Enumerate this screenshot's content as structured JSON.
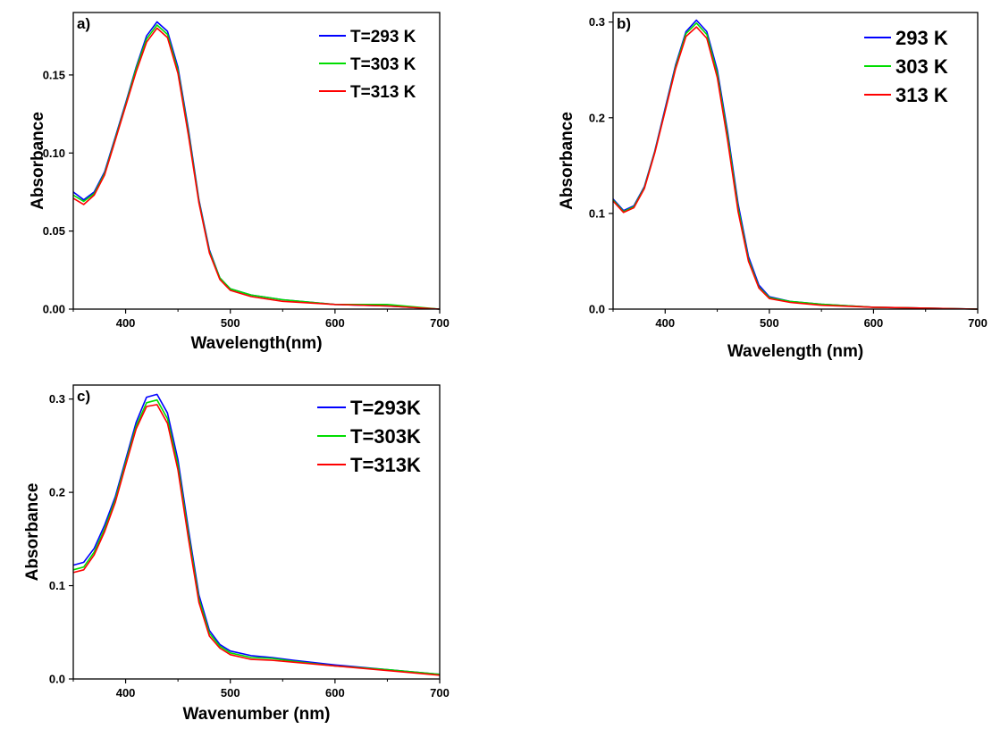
{
  "chart_data": [
    {
      "id": "a",
      "type": "line",
      "panel_label": "a)",
      "xlabel": "Wavelength(nm)",
      "ylabel": "Absorbance",
      "xlim": [
        350,
        700
      ],
      "ylim": [
        0,
        0.19
      ],
      "xticks": [
        400,
        500,
        600,
        700
      ],
      "xtick_labels": [
        "400",
        "500",
        "600",
        "700"
      ],
      "yticks": [
        0,
        0.05,
        0.1,
        0.15
      ],
      "ytick_labels": [
        "0.00",
        "0.05",
        "0.10",
        "0.15"
      ],
      "legend_position": "top-right",
      "x": [
        350,
        360,
        370,
        380,
        390,
        400,
        410,
        420,
        430,
        440,
        450,
        460,
        470,
        480,
        490,
        500,
        520,
        550,
        600,
        650,
        700
      ],
      "series": [
        {
          "name": "T=293 K",
          "color": "#0000ff",
          "values": [
            0.075,
            0.07,
            0.075,
            0.088,
            0.11,
            0.132,
            0.155,
            0.175,
            0.184,
            0.178,
            0.155,
            0.115,
            0.07,
            0.038,
            0.02,
            0.013,
            0.009,
            0.006,
            0.003,
            0.002,
            0.0
          ]
        },
        {
          "name": "T=303 K",
          "color": "#00dd00",
          "values": [
            0.073,
            0.069,
            0.074,
            0.087,
            0.109,
            0.131,
            0.154,
            0.173,
            0.182,
            0.176,
            0.153,
            0.113,
            0.069,
            0.037,
            0.02,
            0.013,
            0.009,
            0.006,
            0.003,
            0.003,
            0.0
          ]
        },
        {
          "name": "T=313 K",
          "color": "#ff0000",
          "values": [
            0.071,
            0.067,
            0.073,
            0.086,
            0.108,
            0.13,
            0.152,
            0.171,
            0.18,
            0.174,
            0.151,
            0.111,
            0.068,
            0.036,
            0.019,
            0.012,
            0.008,
            0.005,
            0.003,
            0.002,
            0.0
          ]
        }
      ]
    },
    {
      "id": "b",
      "type": "line",
      "panel_label": "b)",
      "xlabel": "Wavelength (nm)",
      "ylabel": "Absorbance",
      "xlim": [
        350,
        700
      ],
      "ylim": [
        0,
        0.31
      ],
      "xticks": [
        400,
        500,
        600,
        700
      ],
      "xtick_labels": [
        "400",
        "500",
        "600",
        "700"
      ],
      "yticks": [
        0,
        0.1,
        0.2,
        0.3
      ],
      "ytick_labels": [
        "0.0",
        "0.1",
        "0.2",
        "0.3"
      ],
      "legend_position": "top-right",
      "x": [
        350,
        360,
        370,
        380,
        390,
        400,
        410,
        420,
        430,
        440,
        450,
        460,
        470,
        480,
        490,
        500,
        520,
        550,
        600,
        650,
        700
      ],
      "series": [
        {
          "name": "293 K",
          "color": "#0000ff",
          "values": [
            0.115,
            0.103,
            0.108,
            0.128,
            0.165,
            0.21,
            0.255,
            0.29,
            0.302,
            0.29,
            0.25,
            0.185,
            0.11,
            0.055,
            0.025,
            0.013,
            0.008,
            0.005,
            0.002,
            0.001,
            0.0
          ]
        },
        {
          "name": "303 K",
          "color": "#00dd00",
          "values": [
            0.114,
            0.102,
            0.107,
            0.127,
            0.164,
            0.208,
            0.253,
            0.288,
            0.299,
            0.287,
            0.246,
            0.181,
            0.106,
            0.052,
            0.023,
            0.012,
            0.008,
            0.005,
            0.002,
            0.001,
            0.0
          ]
        },
        {
          "name": "313 K",
          "color": "#ff0000",
          "values": [
            0.113,
            0.101,
            0.106,
            0.126,
            0.163,
            0.207,
            0.251,
            0.285,
            0.295,
            0.283,
            0.242,
            0.176,
            0.102,
            0.05,
            0.022,
            0.011,
            0.007,
            0.004,
            0.002,
            0.001,
            0.0
          ]
        }
      ]
    },
    {
      "id": "c",
      "type": "line",
      "panel_label": "c)",
      "xlabel": "Wavenumber (nm)",
      "ylabel": "Absorbance",
      "xlim": [
        350,
        700
      ],
      "ylim": [
        0,
        0.315
      ],
      "xticks": [
        400,
        500,
        600,
        700
      ],
      "xtick_labels": [
        "400",
        "500",
        "600",
        "700"
      ],
      "yticks": [
        0,
        0.1,
        0.2,
        0.3
      ],
      "ytick_labels": [
        "0.0",
        "0.1",
        "0.2",
        "0.3"
      ],
      "legend_position": "top-right",
      "x": [
        350,
        360,
        370,
        380,
        390,
        400,
        410,
        420,
        430,
        440,
        450,
        460,
        470,
        480,
        490,
        500,
        520,
        540,
        560,
        600,
        650,
        700
      ],
      "series": [
        {
          "name": "T=293K",
          "color": "#0000ff",
          "values": [
            0.122,
            0.125,
            0.14,
            0.165,
            0.195,
            0.235,
            0.275,
            0.302,
            0.305,
            0.285,
            0.235,
            0.16,
            0.09,
            0.052,
            0.037,
            0.03,
            0.025,
            0.023,
            0.02,
            0.015,
            0.01,
            0.005
          ]
        },
        {
          "name": "T=303K",
          "color": "#00dd00",
          "values": [
            0.117,
            0.12,
            0.136,
            0.161,
            0.192,
            0.232,
            0.271,
            0.296,
            0.299,
            0.279,
            0.229,
            0.155,
            0.086,
            0.049,
            0.035,
            0.028,
            0.023,
            0.022,
            0.019,
            0.014,
            0.01,
            0.005
          ]
        },
        {
          "name": "T=313K",
          "color": "#ff0000",
          "values": [
            0.114,
            0.117,
            0.133,
            0.158,
            0.189,
            0.229,
            0.268,
            0.292,
            0.294,
            0.274,
            0.224,
            0.15,
            0.082,
            0.046,
            0.033,
            0.026,
            0.021,
            0.02,
            0.018,
            0.014,
            0.009,
            0.004
          ]
        }
      ]
    }
  ]
}
